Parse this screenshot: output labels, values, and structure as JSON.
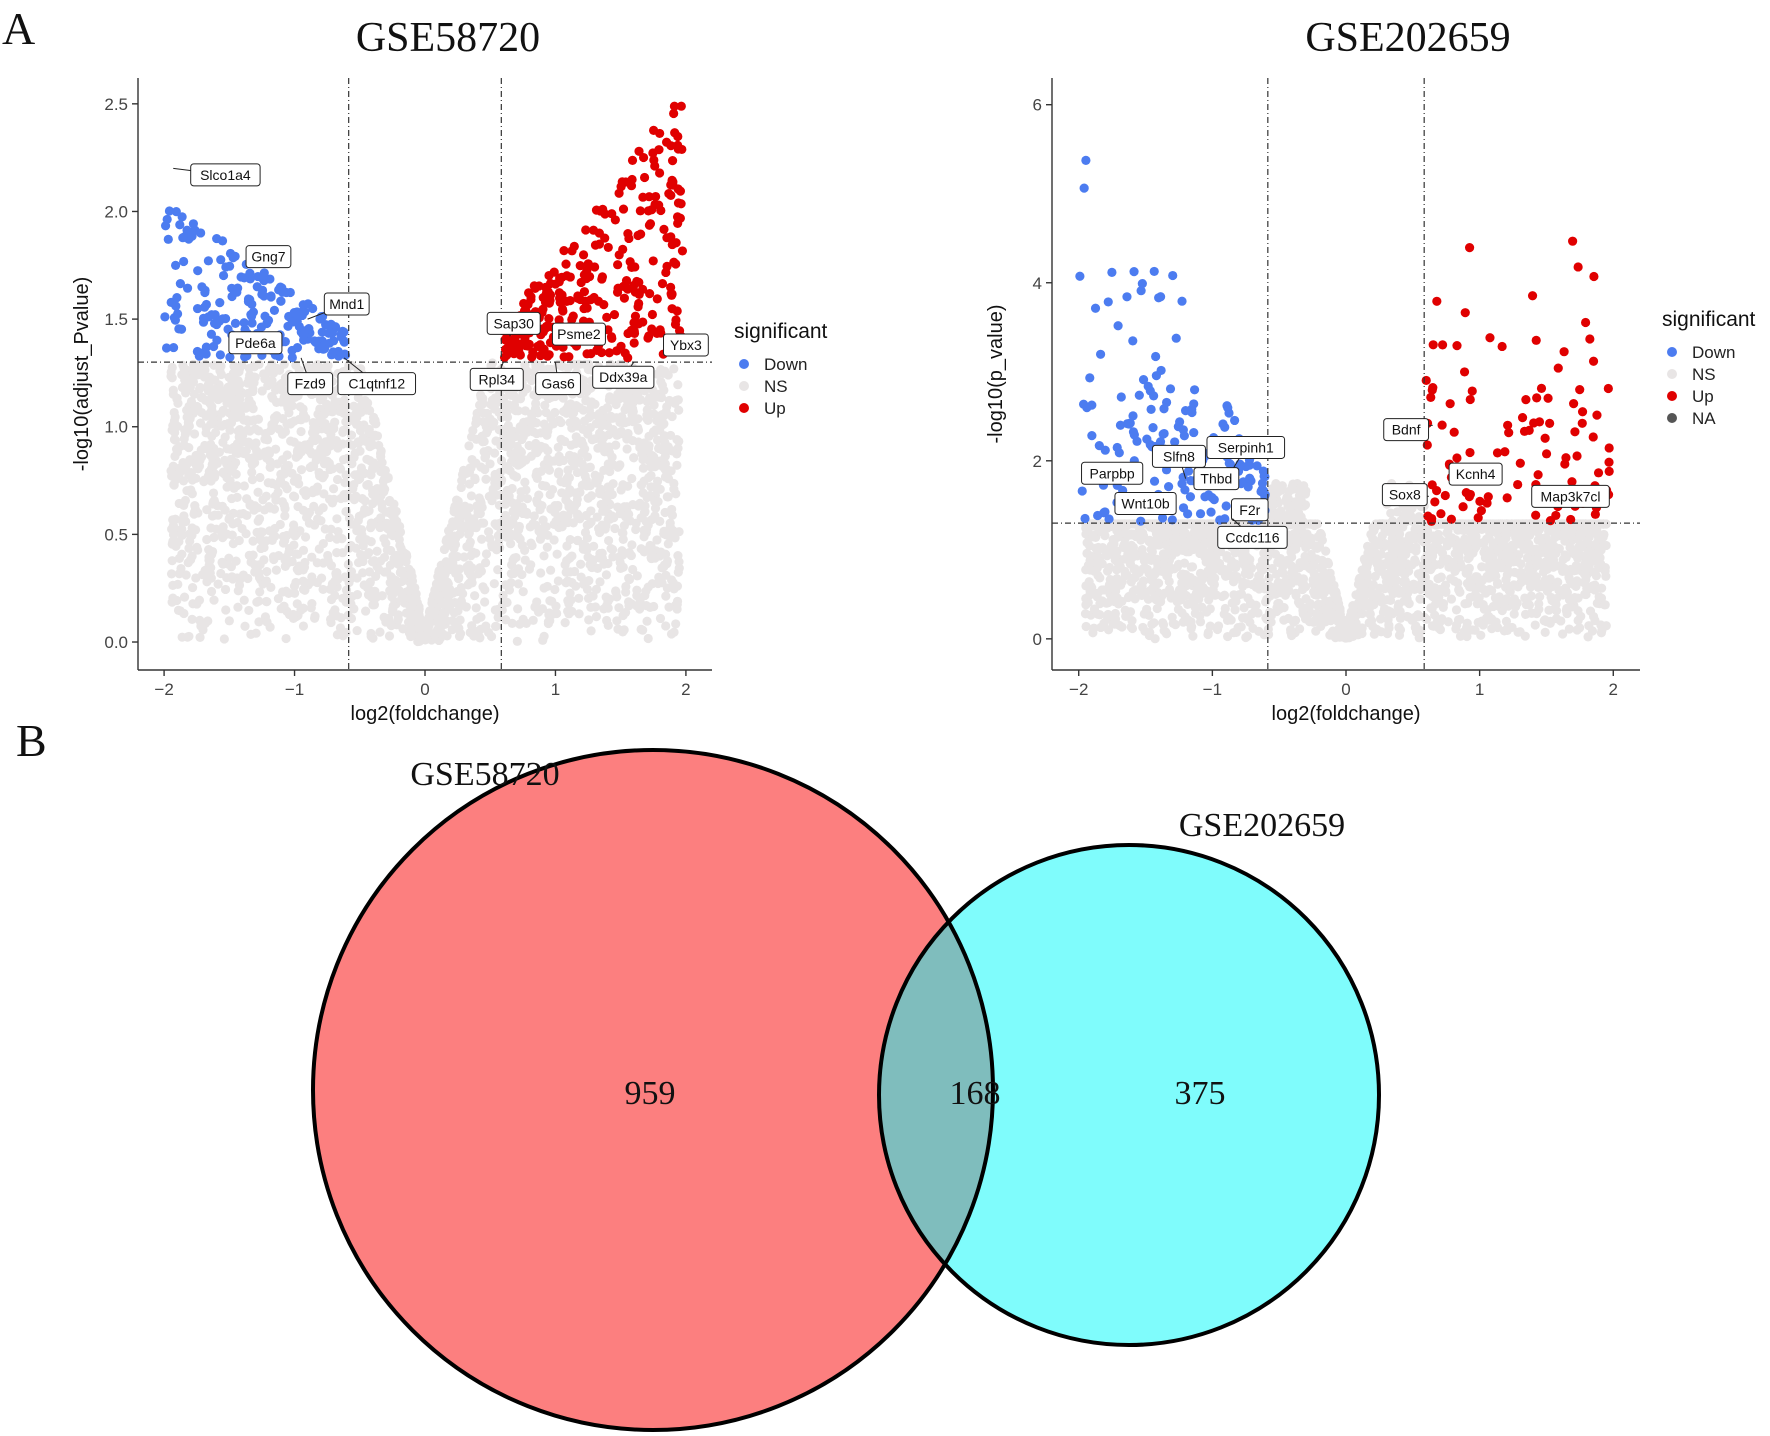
{
  "panels": {
    "a": "A",
    "b": "B"
  },
  "colors": {
    "down": "#4c7cf0",
    "ns": "#e8e5e5",
    "up": "#e00000",
    "na": "#555555",
    "venn_left": "#fc7f7f",
    "venn_right": "#7ffcfc",
    "venn_overlap": "#7fbdbd"
  },
  "chart_data": [
    {
      "type": "scatter",
      "title": "GSE58720",
      "xlabel": "log2(foldchange)",
      "ylabel": "-log10(adjust_Pvalue)",
      "xlim": [
        -2.2,
        2.2
      ],
      "ylim": [
        -0.13,
        2.62
      ],
      "xticks": [
        -2,
        -1,
        0,
        1,
        2
      ],
      "xtick_labels": [
        "−2",
        "−1",
        "0",
        "1",
        "2"
      ],
      "yticks": [
        0.0,
        0.5,
        1.0,
        1.5,
        2.0,
        2.5
      ],
      "ytick_labels": [
        "0.0",
        "0.5",
        "1.0",
        "1.5",
        "2.0",
        "2.5"
      ],
      "vlines": [
        -0.585,
        0.585
      ],
      "hline": 1.3,
      "legend": {
        "title": "significant",
        "entries": [
          "Down",
          "NS",
          "Up"
        ],
        "placement": "right"
      },
      "labels": [
        {
          "text": "Slco1a4",
          "x": -1.93,
          "y": 2.2,
          "lx": -1.53,
          "ly": 2.17
        },
        {
          "text": "Gng7",
          "x": -1.28,
          "y": 1.82,
          "lx": -1.2,
          "ly": 1.79
        },
        {
          "text": "Mnd1",
          "x": -0.9,
          "y": 1.5,
          "lx": -0.6,
          "ly": 1.57
        },
        {
          "text": "Pde6a",
          "x": -1.1,
          "y": 1.42,
          "lx": -1.3,
          "ly": 1.39
        },
        {
          "text": "Fzd9",
          "x": -0.95,
          "y": 1.32,
          "lx": -0.88,
          "ly": 1.2
        },
        {
          "text": "C1qtnf12",
          "x": -0.62,
          "y": 1.32,
          "lx": -0.37,
          "ly": 1.2
        },
        {
          "text": "Sap30",
          "x": 0.65,
          "y": 1.42,
          "lx": 0.68,
          "ly": 1.48
        },
        {
          "text": "Psme2",
          "x": 1.15,
          "y": 1.4,
          "lx": 1.18,
          "ly": 1.43
        },
        {
          "text": "Ybx3",
          "x": 1.95,
          "y": 1.35,
          "lx": 2.0,
          "ly": 1.38
        },
        {
          "text": "Rpl34",
          "x": 0.6,
          "y": 1.3,
          "lx": 0.55,
          "ly": 1.22
        },
        {
          "text": "Gas6",
          "x": 1.0,
          "y": 1.3,
          "lx": 1.02,
          "ly": 1.2
        },
        {
          "text": "Ddx39a",
          "x": 1.6,
          "y": 1.3,
          "lx": 1.52,
          "ly": 1.23
        }
      ]
    },
    {
      "type": "scatter",
      "title": "GSE202659",
      "xlabel": "log2(foldchange)",
      "ylabel": "-log10(p_value)",
      "xlim": [
        -2.2,
        2.2
      ],
      "ylim": [
        -0.35,
        6.3
      ],
      "xticks": [
        -2,
        -1,
        0,
        1,
        2
      ],
      "xtick_labels": [
        "−2",
        "−1",
        "0",
        "1",
        "2"
      ],
      "yticks": [
        0,
        2,
        4,
        6
      ],
      "ytick_labels": [
        "0",
        "2",
        "4",
        "6"
      ],
      "vlines": [
        -0.585,
        0.585
      ],
      "hline": 1.3,
      "legend": {
        "title": "significant",
        "entries": [
          "Down",
          "NS",
          "Up",
          "NA"
        ],
        "placement": "right"
      },
      "labels": [
        {
          "text": "Parpbp",
          "x": -1.9,
          "y": 1.8,
          "lx": -1.75,
          "ly": 1.86
        },
        {
          "text": "Slfn8",
          "x": -1.2,
          "y": 1.8,
          "lx": -1.25,
          "ly": 2.05
        },
        {
          "text": "Serpinh1",
          "x": -0.85,
          "y": 1.9,
          "lx": -0.75,
          "ly": 2.15
        },
        {
          "text": "Thbd",
          "x": -1.0,
          "y": 1.7,
          "lx": -0.97,
          "ly": 1.8
        },
        {
          "text": "Wnt10b",
          "x": -1.6,
          "y": 1.5,
          "lx": -1.5,
          "ly": 1.52
        },
        {
          "text": "F2r",
          "x": -0.8,
          "y": 1.4,
          "lx": -0.72,
          "ly": 1.45
        },
        {
          "text": "Ccdc116",
          "x": -0.85,
          "y": 1.35,
          "lx": -0.7,
          "ly": 1.14
        },
        {
          "text": "Bdnf",
          "x": 0.65,
          "y": 2.4,
          "lx": 0.45,
          "ly": 2.35
        },
        {
          "text": "Sox8",
          "x": 0.62,
          "y": 1.6,
          "lx": 0.44,
          "ly": 1.62
        },
        {
          "text": "Kcnh4",
          "x": 0.85,
          "y": 1.85,
          "lx": 0.97,
          "ly": 1.85
        },
        {
          "text": "Map3k7cl",
          "x": 1.8,
          "y": 1.5,
          "lx": 1.68,
          "ly": 1.6
        }
      ]
    },
    {
      "type": "venn",
      "sets": [
        "GSE58720",
        "GSE202659"
      ],
      "values": {
        "left_only": "959",
        "overlap": "168",
        "right_only": "375"
      }
    }
  ]
}
